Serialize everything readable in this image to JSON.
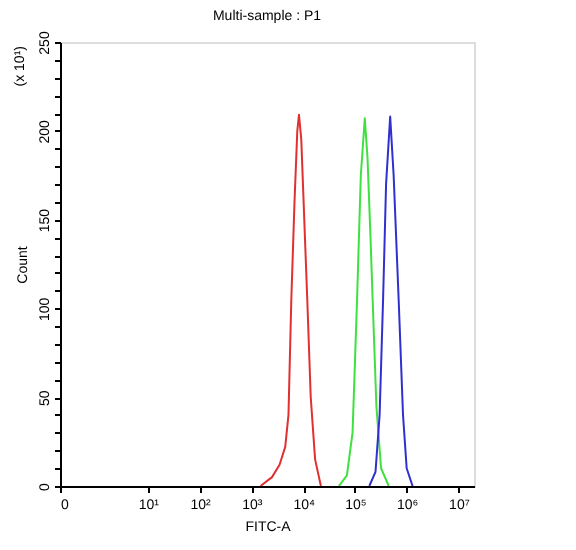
{
  "chart_data": {
    "type": "line",
    "title": "Multi-sample : P1",
    "xlabel": "FITC-A",
    "ylabel": "Count",
    "annotations": [
      "(x 10¹)"
    ],
    "series": [
      {
        "color": "#e03030",
        "x": [
          1500,
          2500,
          3500,
          4500,
          5200,
          5900,
          6800,
          7700,
          8300,
          9200,
          10500,
          12000,
          14000,
          17000,
          22000
        ],
        "values": [
          0,
          5,
          12,
          22,
          40,
          105,
          160,
          200,
          209,
          195,
          150,
          105,
          50,
          15,
          0
        ]
      },
      {
        "color": "#40e040",
        "x": [
          49000,
          70000,
          90000,
          110000,
          130000,
          155000,
          175000,
          200000,
          220000,
          260000,
          320000,
          450000
        ],
        "values": [
          0,
          6,
          30,
          105,
          175,
          207,
          185,
          140,
          105,
          45,
          10,
          0
        ]
      },
      {
        "color": "#3030d0",
        "x": [
          190000,
          250000,
          300000,
          350000,
          400000,
          480000,
          560000,
          700000,
          850000,
          1000000,
          1300000
        ],
        "values": [
          0,
          8,
          40,
          105,
          170,
          208,
          175,
          105,
          40,
          10,
          0
        ]
      }
    ],
    "log": "x",
    "xlim": [
      0.2,
      20000000
    ],
    "xticks": [
      {
        "value": 0.2,
        "label": "0"
      },
      {
        "value": 10,
        "label": "10¹"
      },
      {
        "value": 100,
        "label": "10²"
      },
      {
        "value": 1000,
        "label": "10³"
      },
      {
        "value": 10000,
        "label": "10⁴"
      },
      {
        "value": 100000,
        "label": "10⁵"
      },
      {
        "value": 1000000,
        "label": "10⁶"
      },
      {
        "value": 10000000,
        "label": "10⁷"
      }
    ],
    "ylim": [
      0,
      250
    ],
    "yticks": [
      0,
      {
        "value": 10,
        "label": null
      },
      {
        "value": 20,
        "label": null
      },
      {
        "value": 30,
        "label": null
      },
      {
        "value": 40,
        "label": null
      },
      50,
      {
        "value": 60,
        "label": null
      },
      {
        "value": 70,
        "label": null
      },
      {
        "value": 80,
        "label": null
      },
      {
        "value": 90,
        "label": null
      },
      100,
      {
        "value": 110,
        "label": null
      },
      {
        "value": 120,
        "label": null
      },
      {
        "value": 130,
        "label": null
      },
      {
        "value": 140,
        "label": null
      },
      150,
      {
        "value": 160,
        "label": null
      },
      {
        "value": 170,
        "label": null
      },
      {
        "value": 180,
        "label": null
      },
      {
        "value": 190,
        "label": null
      },
      200,
      {
        "value": 210,
        "label": null
      },
      {
        "value": 220,
        "label": null
      },
      {
        "value": 230,
        "label": null
      },
      {
        "value": 240,
        "label": null
      },
      250
    ]
  }
}
